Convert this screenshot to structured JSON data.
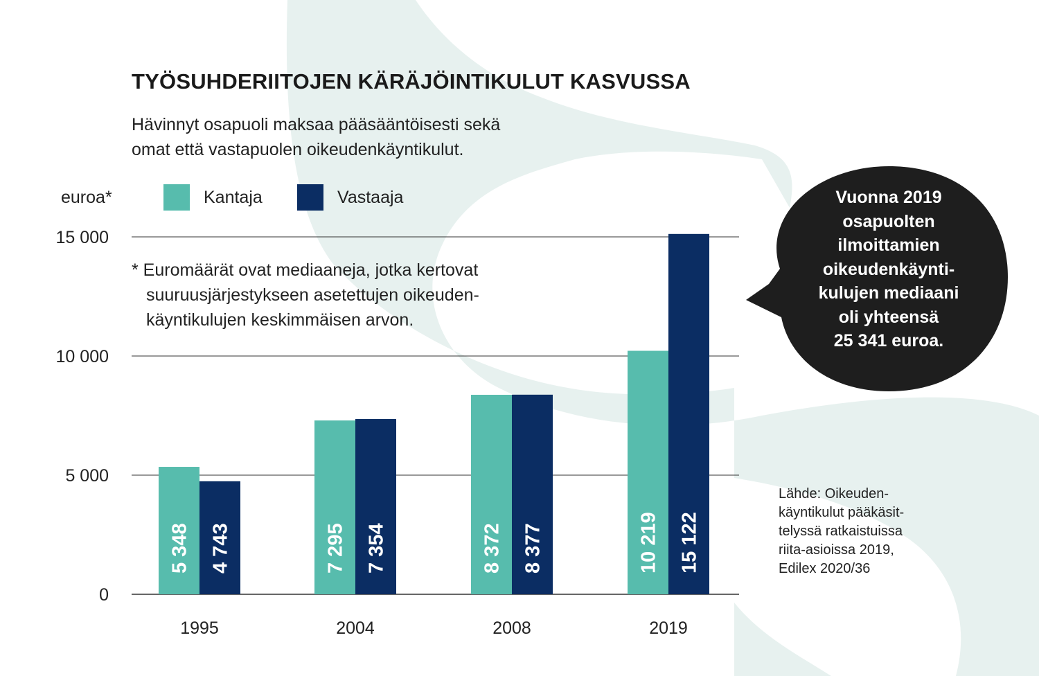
{
  "title": "TYÖSUHDERIITOJEN KÄRÄJÖINTIKULUT KASVUSSA",
  "subtitle": [
    "Hävinnyt osapuoli maksaa pääsääntöisesti sekä",
    "omat että vastapuolen oikeudenkäyntikulut."
  ],
  "unit_label": "euroa*",
  "note": [
    "* Euromäärät ovat mediaaneja, jotka kertovat",
    "suuruusjärjestykseen asetettujen oikeuden-",
    "käyntikulujen keskimmäisen arvon."
  ],
  "callout": [
    "Vuonna 2019",
    "osapuolten",
    "ilmoittamien",
    "oikeudenkäynti-",
    "kulujen mediaani",
    "oli yhteensä",
    "25 341 euroa."
  ],
  "source": [
    "Lähde: Oikeuden-",
    "käyntikulut pääkäsit-",
    "telyssä ratkaistuissa",
    "riita-asioissa 2019,",
    "Edilex 2020/36"
  ],
  "colors": {
    "kantaja": "#57bcad",
    "vastaaja": "#0b2d63",
    "bubble": "#1e1e1e",
    "background_shape": "#e7f1ef",
    "gridline": "#333333"
  },
  "chart_data": {
    "type": "bar",
    "categories": [
      "1995",
      "2004",
      "2008",
      "2019"
    ],
    "series": [
      {
        "name": "Kantaja",
        "values": [
          5348,
          7295,
          8372,
          10219
        ],
        "labels": [
          "5 348",
          "7 295",
          "8 372",
          "10 219"
        ]
      },
      {
        "name": "Vastaaja",
        "values": [
          4743,
          7354,
          8377,
          15122
        ],
        "labels": [
          "4 743",
          "7 354",
          "8 377",
          "15 122"
        ]
      }
    ],
    "yticks": [
      0,
      5000,
      10000,
      15000
    ],
    "ytick_labels": [
      "0",
      "5 000",
      "10 000",
      "15 000"
    ],
    "ylim": [
      0,
      15000
    ],
    "grid": true,
    "legend": "top-left"
  }
}
